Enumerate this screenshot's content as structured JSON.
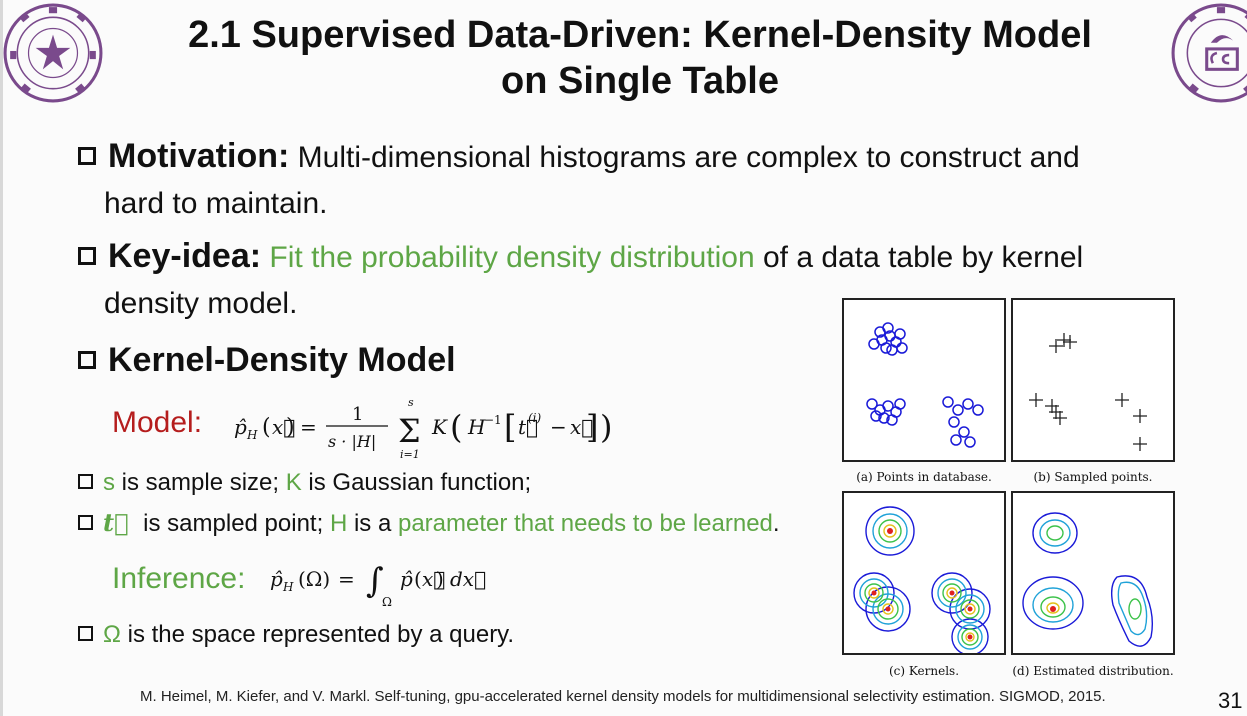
{
  "title": {
    "line1": "2.1 Supervised Data-Driven: Kernel-Density Model",
    "line2": "on Single Table"
  },
  "logos": {
    "left_icon": "tsinghua-university-seal",
    "right_icon": "tsinghua-cs-department-seal"
  },
  "motivation": {
    "label": "Motivation:",
    "text": "Multi-dimensional histograms are complex to construct and",
    "text2": "hard to maintain."
  },
  "keyidea": {
    "label": "Key-idea:",
    "green": "Fit the probability density distribution",
    "rest": " of a data table by kernel",
    "text2": "density model."
  },
  "kdm": {
    "label": "Kernel-Density Model",
    "model_label": "Model:",
    "model_formula": "p̂H(x⃗) = 1/(s·|H|) Σ K(H⁻¹[t⃗⁽ⁱ⁾ − x⃗])",
    "bullet1_s": "s",
    "bullet1_a": " is sample size; ",
    "bullet1_k": "K",
    "bullet1_b": " is Gaussian function;",
    "bullet2_t": "t⃗",
    "bullet2_a": " is sampled point; ",
    "bullet2_h": "H",
    "bullet2_b": " is a ",
    "bullet2_green": "parameter that needs to be learned",
    "bullet2_end": ".",
    "inference_label": "Inference:",
    "inference_formula": "p̂H(Ω) = ∫Ω p̂(x⃗) dx⃗",
    "bullet3_omega": "Ω",
    "bullet3_text": " is the space represented by a query."
  },
  "figures": {
    "a": "(a) Points in database.",
    "b": "(b) Sampled points.",
    "c": "(c) Kernels.",
    "d": "(d) Estimated distribution."
  },
  "citation": "M. Heimel, M. Kiefer, and V. Markl. Self-tuning, gpu-accelerated kernel density models for multidimensional selectivity estimation. SIGMOD, 2015.",
  "page_number": "31",
  "colors": {
    "green": "#5ea646",
    "red": "#b51d1d",
    "seal": "#7a4a8c"
  }
}
